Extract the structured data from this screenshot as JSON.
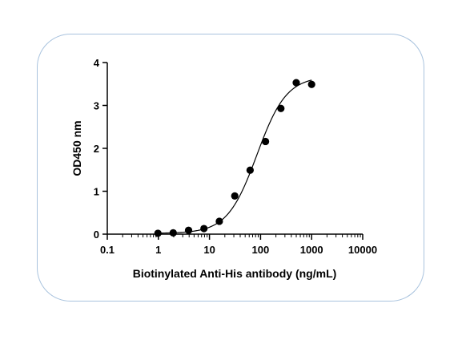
{
  "chart_data": {
    "type": "scatter",
    "xlabel": "Biotinylated Anti-His antibody (ng/mL)",
    "ylabel": "OD450 nm",
    "xscale": "log",
    "xlim": [
      0.1,
      10000
    ],
    "ylim": [
      0,
      4
    ],
    "x_ticks": [
      "0.1",
      "1",
      "10",
      "100",
      "1000",
      "10000"
    ],
    "y_ticks": [
      "0",
      "1",
      "2",
      "3",
      "4"
    ],
    "grid": false,
    "legend": "none",
    "points": [
      {
        "x": 0.98,
        "y": 0.02
      },
      {
        "x": 1.95,
        "y": 0.03
      },
      {
        "x": 3.9,
        "y": 0.09
      },
      {
        "x": 7.8,
        "y": 0.13
      },
      {
        "x": 15.6,
        "y": 0.3
      },
      {
        "x": 31.3,
        "y": 0.89
      },
      {
        "x": 62.5,
        "y": 1.49
      },
      {
        "x": 125,
        "y": 2.16
      },
      {
        "x": 250,
        "y": 2.93
      },
      {
        "x": 500,
        "y": 3.53
      },
      {
        "x": 1000,
        "y": 3.49
      }
    ],
    "fit": {
      "model": "4PL",
      "bottom": 0.02,
      "top": 3.68,
      "ec50": 85,
      "hill": 1.5,
      "x_range": [
        1,
        1000
      ]
    },
    "colors": {
      "marker": "#000000",
      "curve": "#000000",
      "frame": "#a9c3de"
    }
  }
}
